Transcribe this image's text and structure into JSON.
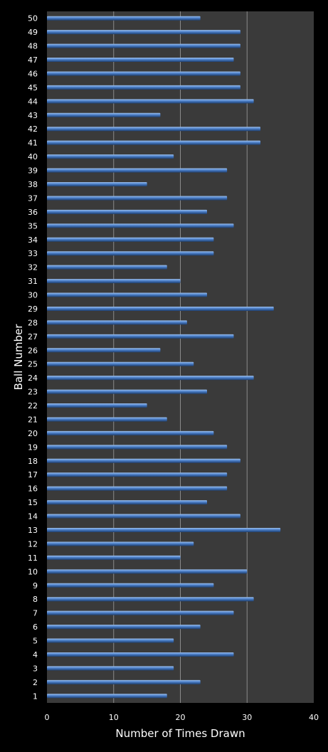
{
  "chart_data": {
    "type": "bar",
    "orientation": "horizontal",
    "title": "",
    "xlabel": "Number of Times Drawn",
    "ylabel": "Ball Number",
    "xlim": [
      0,
      40
    ],
    "xticks": [
      0,
      10,
      20,
      30,
      40
    ],
    "grid": true,
    "legend": "none",
    "colors": {
      "background": "#000000",
      "plot_area": "#3a3a3a",
      "bar": "#4a7ec8",
      "bar_highlight": "#9cc0ee",
      "bar_shadow": "#1f3f6e",
      "gridline": "#8a8a8a",
      "text": "#ffffff"
    },
    "categories": [
      "1",
      "2",
      "3",
      "4",
      "5",
      "6",
      "7",
      "8",
      "9",
      "10",
      "11",
      "12",
      "13",
      "14",
      "15",
      "16",
      "17",
      "18",
      "19",
      "20",
      "21",
      "22",
      "23",
      "24",
      "25",
      "26",
      "27",
      "28",
      "29",
      "30",
      "31",
      "32",
      "33",
      "34",
      "35",
      "36",
      "37",
      "38",
      "39",
      "40",
      "41",
      "42",
      "43",
      "44",
      "45",
      "46",
      "47",
      "48",
      "49",
      "50"
    ],
    "values": [
      18,
      23,
      19,
      28,
      19,
      23,
      28,
      31,
      25,
      30,
      20,
      22,
      35,
      29,
      24,
      27,
      27,
      29,
      27,
      25,
      18,
      15,
      24,
      31,
      22,
      17,
      28,
      21,
      34,
      24,
      20,
      18,
      25,
      25,
      28,
      24,
      27,
      15,
      27,
      19,
      32,
      32,
      17,
      31,
      29,
      29,
      28,
      29,
      29,
      23
    ]
  }
}
